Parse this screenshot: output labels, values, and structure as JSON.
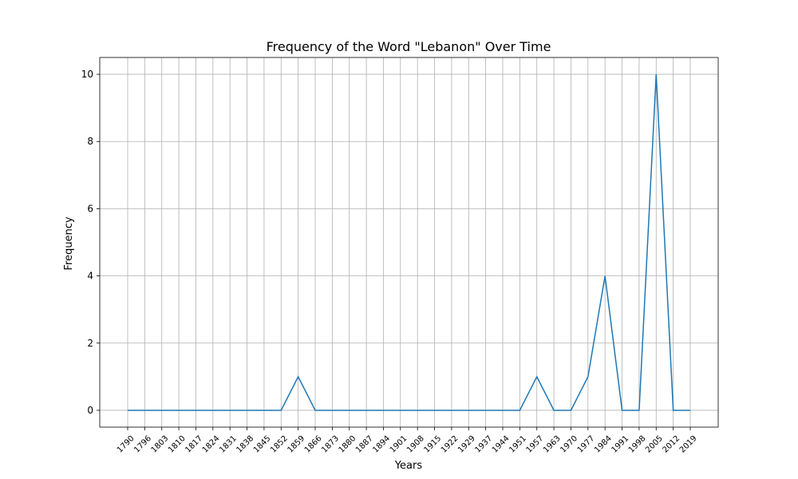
{
  "chart_data": {
    "type": "line",
    "title": "Frequency of the Word \"Lebanon\" Over Time",
    "xlabel": "Years",
    "ylabel": "Frequency",
    "x": [
      "1790",
      "1796",
      "1803",
      "1810",
      "1817",
      "1824",
      "1831",
      "1838",
      "1845",
      "1852",
      "1859",
      "1866",
      "1873",
      "1880",
      "1887",
      "1894",
      "1901",
      "1908",
      "1915",
      "1922",
      "1929",
      "1937",
      "1944",
      "1951",
      "1957",
      "1963",
      "1970",
      "1977",
      "1984",
      "1991",
      "1998",
      "2005",
      "2012",
      "2019"
    ],
    "series": [
      {
        "values": [
          0,
          0,
          0,
          0,
          0,
          0,
          0,
          0,
          0,
          0,
          1,
          0,
          0,
          0,
          0,
          0,
          0,
          0,
          0,
          0,
          0,
          0,
          0,
          0,
          1,
          0,
          0,
          1,
          4,
          0,
          0,
          10,
          0,
          0
        ],
        "color": "#1f77b4"
      }
    ],
    "ylim": [
      -0.5,
      10.5
    ],
    "yticks": [
      0,
      2,
      4,
      6,
      8,
      10
    ],
    "grid": true,
    "x_tick_rotation": "45deg"
  }
}
